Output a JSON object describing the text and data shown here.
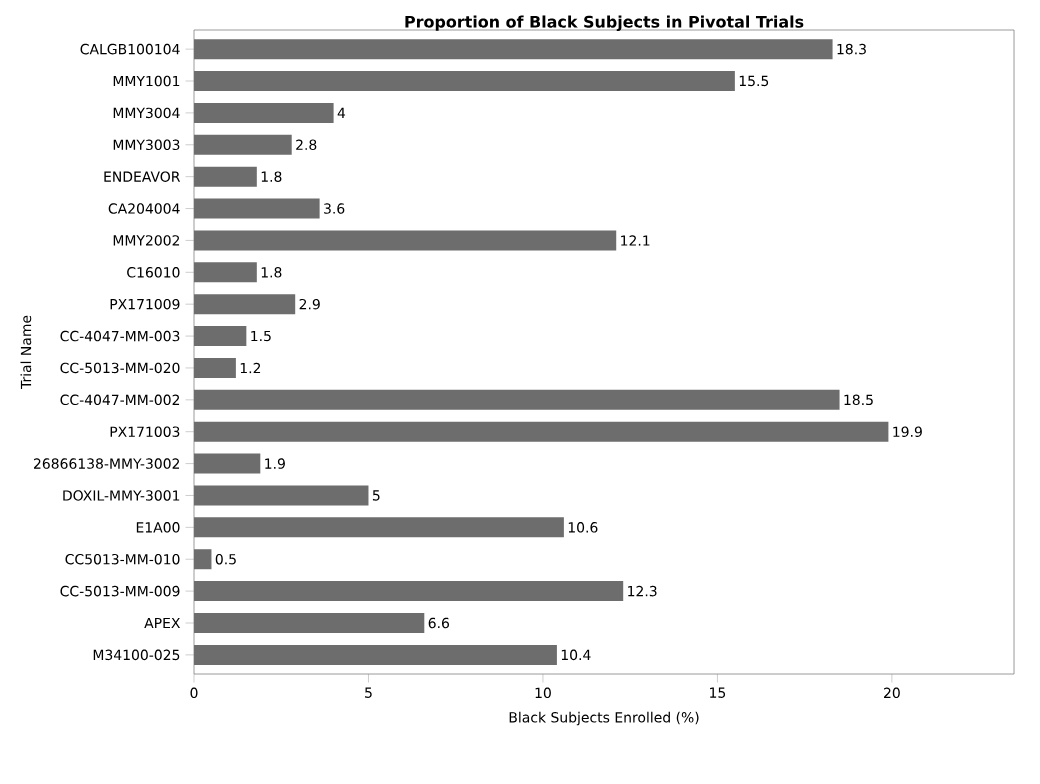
{
  "chart_data": {
    "type": "bar",
    "orientation": "horizontal",
    "title": "Proportion of Black Subjects in Pivotal Trials",
    "xlabel": "Black Subjects Enrolled (%)",
    "ylabel": "Trial Name",
    "categories": [
      "CALGB100104",
      "MMY1001",
      "MMY3004",
      "MMY3003",
      "ENDEAVOR",
      "CA204004",
      "MMY2002",
      "C16010",
      "PX171009",
      "CC-4047-MM-003",
      "CC-5013-MM-020",
      "CC-4047-MM-002",
      "PX171003",
      "26866138-MMY-3002",
      "DOXIL-MMY-3001",
      "E1A00",
      "CC5013-MM-010",
      "CC-5013-MM-009",
      "APEX",
      "M34100-025"
    ],
    "values": [
      18.3,
      15.5,
      4,
      2.8,
      1.8,
      3.6,
      12.1,
      1.8,
      2.9,
      1.5,
      1.2,
      18.5,
      19.9,
      1.9,
      5,
      10.6,
      0.5,
      12.3,
      6.6,
      10.4
    ],
    "color": "#6d6d6d",
    "xlim": [
      0,
      23.5
    ],
    "xticks": [
      0,
      5,
      10,
      15,
      20
    ],
    "data_labels": true,
    "grid": false
  }
}
